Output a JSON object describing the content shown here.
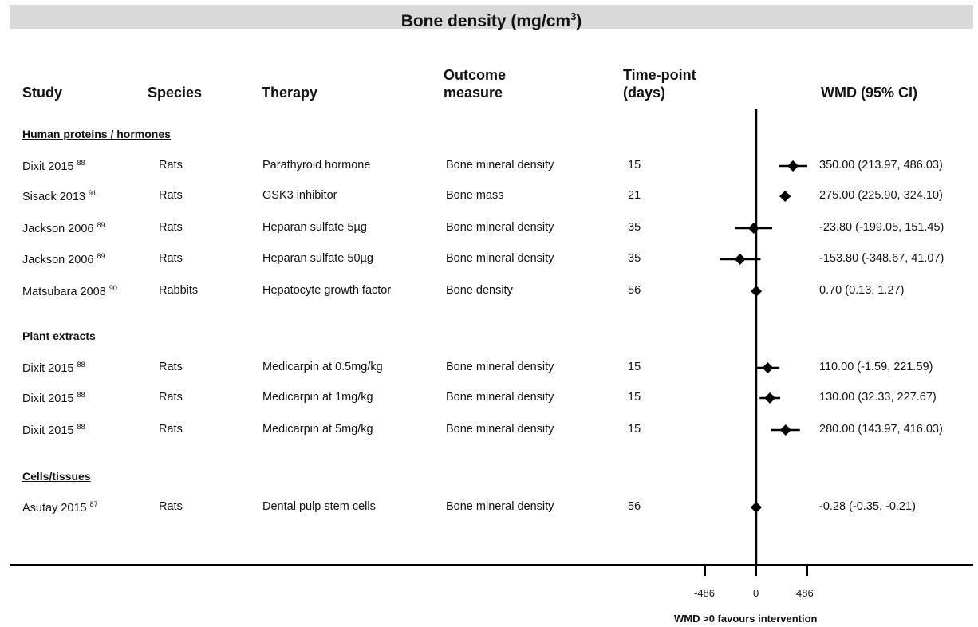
{
  "title": {
    "main": "Bone density (mg/cm",
    "sup": "3",
    "end": ")"
  },
  "headers": {
    "study": "Study",
    "species": "Species",
    "therapy": "Therapy",
    "outcome_line1": "Outcome",
    "outcome_line2": "measure",
    "time_line1": "Time-point",
    "time_line2": "(days)",
    "wmd": "WMD (95% CI)"
  },
  "groups": [
    {
      "label": "Human proteins / hormones"
    },
    {
      "label": "Plant extracts"
    },
    {
      "label": "Cells/tissues"
    }
  ],
  "rows": [
    {
      "study": "Dixit 2015",
      "ref": "88",
      "species": "Rats",
      "therapy": "Parathyroid hormone",
      "outcome": "Bone mineral density",
      "time": "15",
      "ci_text": "350.00 (213.97, 486.03)"
    },
    {
      "study": "Sisack 2013",
      "ref": "91",
      "species": "Rats",
      "therapy": "GSK3 inhibitor",
      "outcome": "Bone mass",
      "time": "21",
      "ci_text": "275.00 (225.90, 324.10)"
    },
    {
      "study": "Jackson 2006",
      "ref": "89",
      "species": "Rats",
      "therapy": "Heparan sulfate 5µg",
      "outcome": "Bone mineral density",
      "time": "35",
      "ci_text": "-23.80 (-199.05, 151.45)"
    },
    {
      "study": "Jackson 2006",
      "ref": "89",
      "species": "Rats",
      "therapy": "Heparan sulfate 50µg",
      "outcome": "Bone mineral density",
      "time": "35",
      "ci_text": "-153.80 (-348.67, 41.07)"
    },
    {
      "study": "Matsubara 2008",
      "ref": "90",
      "species": "Rabbits",
      "therapy": "Hepatocyte growth factor",
      "outcome": "Bone density",
      "time": "56",
      "ci_text": "0.70 (0.13, 1.27)"
    },
    {
      "study": "Dixit 2015",
      "ref": "88",
      "species": "Rats",
      "therapy": "Medicarpin at 0.5mg/kg",
      "outcome": "Bone mineral density",
      "time": "15",
      "ci_text": "110.00 (-1.59, 221.59)"
    },
    {
      "study": "Dixit 2015",
      "ref": "88",
      "species": "Rats",
      "therapy": "Medicarpin at 1mg/kg",
      "outcome": "Bone mineral density",
      "time": "15",
      "ci_text": "130.00 (32.33, 227.67)"
    },
    {
      "study": "Dixit 2015",
      "ref": "88",
      "species": "Rats",
      "therapy": "Medicarpin at 5mg/kg",
      "outcome": "Bone mineral density",
      "time": "15",
      "ci_text": "280.00 (143.97, 416.03)"
    },
    {
      "study": "Asutay 2015",
      "ref": "87",
      "species": "Rats",
      "therapy": "Dental pulp stem cells",
      "outcome": "Bone mineral density",
      "time": "56",
      "ci_text": "-0.28 (-0.35, -0.21)"
    }
  ],
  "chart_data": {
    "type": "forest",
    "title": "Bone density (mg/cm3)",
    "xlabel": "WMD >0 favours intervention",
    "xlim": [
      -486,
      486
    ],
    "xticks": [
      "-486",
      "0",
      "486"
    ],
    "estimates": [
      {
        "mean": 350.0,
        "low": 213.97,
        "high": 486.03
      },
      {
        "mean": 275.0,
        "low": 225.9,
        "high": 324.1
      },
      {
        "mean": -23.8,
        "low": -199.05,
        "high": 151.45
      },
      {
        "mean": -153.8,
        "low": -348.67,
        "high": 41.07
      },
      {
        "mean": 0.7,
        "low": 0.13,
        "high": 1.27
      },
      {
        "mean": 110.0,
        "low": -1.59,
        "high": 221.59
      },
      {
        "mean": 130.0,
        "low": 32.33,
        "high": 227.67
      },
      {
        "mean": 280.0,
        "low": 143.97,
        "high": 416.03
      },
      {
        "mean": -0.28,
        "low": -0.35,
        "high": -0.21
      }
    ],
    "marker_color": "#000000"
  }
}
